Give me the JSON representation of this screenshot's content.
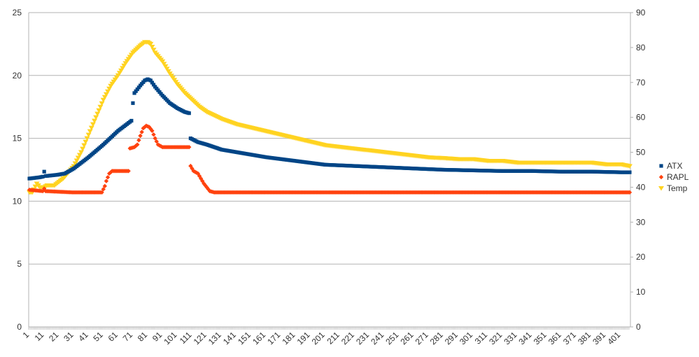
{
  "chart_data": {
    "type": "scatter",
    "title": "",
    "xlabel": "",
    "ylabel": "",
    "ylabel_right": "",
    "x_range": [
      1,
      407
    ],
    "x_tick_start": 1,
    "x_tick_step": 10,
    "ylim_left": [
      0,
      25
    ],
    "yticks_left": [
      0,
      5,
      10,
      15,
      20,
      25
    ],
    "ylim_right": [
      0,
      90
    ],
    "yticks_right": [
      0,
      10,
      20,
      30,
      40,
      50,
      60,
      70,
      80,
      90
    ],
    "grid": true,
    "legend_position": "right",
    "series": [
      {
        "name": "ATX",
        "axis": "left",
        "color": "#004586",
        "marker": "square",
        "points": [
          [
            1,
            11.8
          ],
          [
            8,
            11.9
          ],
          [
            10,
            11.95
          ],
          [
            11,
            12.35
          ],
          [
            12,
            12.0
          ],
          [
            20,
            12.1
          ],
          [
            25,
            12.2
          ],
          [
            31,
            12.6
          ],
          [
            41,
            13.5
          ],
          [
            51,
            14.5
          ],
          [
            61,
            15.6
          ],
          [
            70,
            16.4
          ],
          [
            71,
            17.8
          ],
          [
            72,
            18.6
          ],
          [
            76,
            19.2
          ],
          [
            79,
            19.6
          ],
          [
            81,
            19.7
          ],
          [
            83,
            19.6
          ],
          [
            86,
            19.1
          ],
          [
            91,
            18.4
          ],
          [
            96,
            17.8
          ],
          [
            101,
            17.4
          ],
          [
            106,
            17.1
          ],
          [
            109,
            17.0
          ],
          [
            110,
            15.0
          ],
          [
            115,
            14.7
          ],
          [
            121,
            14.5
          ],
          [
            131,
            14.1
          ],
          [
            141,
            13.9
          ],
          [
            151,
            13.7
          ],
          [
            161,
            13.5
          ],
          [
            171,
            13.35
          ],
          [
            181,
            13.2
          ],
          [
            191,
            13.05
          ],
          [
            201,
            12.9
          ],
          [
            221,
            12.8
          ],
          [
            241,
            12.7
          ],
          [
            261,
            12.6
          ],
          [
            281,
            12.5
          ],
          [
            301,
            12.45
          ],
          [
            321,
            12.4
          ],
          [
            341,
            12.4
          ],
          [
            361,
            12.35
          ],
          [
            381,
            12.35
          ],
          [
            401,
            12.3
          ],
          [
            407,
            12.3
          ]
        ]
      },
      {
        "name": "RAPL",
        "axis": "left",
        "color": "#ff420e",
        "marker": "diamond",
        "points": [
          [
            1,
            10.9
          ],
          [
            10,
            10.8
          ],
          [
            11,
            11.0
          ],
          [
            12,
            10.8
          ],
          [
            30,
            10.7
          ],
          [
            50,
            10.7
          ],
          [
            52,
            11.2
          ],
          [
            53,
            11.6
          ],
          [
            55,
            12.2
          ],
          [
            57,
            12.4
          ],
          [
            68,
            12.4
          ],
          [
            69,
            14.2
          ],
          [
            72,
            14.3
          ],
          [
            74,
            14.5
          ],
          [
            76,
            15.2
          ],
          [
            78,
            15.8
          ],
          [
            80,
            16.0
          ],
          [
            82,
            15.9
          ],
          [
            84,
            15.6
          ],
          [
            86,
            15.0
          ],
          [
            88,
            14.5
          ],
          [
            91,
            14.3
          ],
          [
            109,
            14.3
          ],
          [
            110,
            12.8
          ],
          [
            112,
            12.4
          ],
          [
            115,
            12.2
          ],
          [
            117,
            11.8
          ],
          [
            119,
            11.4
          ],
          [
            121,
            11.1
          ],
          [
            123,
            10.8
          ],
          [
            126,
            10.7
          ],
          [
            200,
            10.7
          ],
          [
            300,
            10.7
          ],
          [
            407,
            10.7
          ]
        ]
      },
      {
        "name": "Temp",
        "axis": "right",
        "color": "#ffd320",
        "marker": "triangle-down",
        "points": [
          [
            1,
            38.5
          ],
          [
            3,
            38.5
          ],
          [
            6,
            41
          ],
          [
            8,
            40
          ],
          [
            11,
            40
          ],
          [
            13,
            40.5
          ],
          [
            18,
            40.5
          ],
          [
            21,
            41.5
          ],
          [
            24,
            42.5
          ],
          [
            27,
            44
          ],
          [
            31,
            46
          ],
          [
            36,
            50
          ],
          [
            41,
            55
          ],
          [
            46,
            60
          ],
          [
            51,
            65
          ],
          [
            56,
            69
          ],
          [
            61,
            72
          ],
          [
            66,
            75.5
          ],
          [
            71,
            78.5
          ],
          [
            76,
            80.5
          ],
          [
            79,
            81.5
          ],
          [
            81,
            81.5
          ],
          [
            83,
            81
          ],
          [
            86,
            78.5
          ],
          [
            91,
            76
          ],
          [
            96,
            72.5
          ],
          [
            101,
            69.5
          ],
          [
            106,
            67
          ],
          [
            111,
            65
          ],
          [
            116,
            63
          ],
          [
            121,
            61.5
          ],
          [
            131,
            59.5
          ],
          [
            141,
            58
          ],
          [
            151,
            57
          ],
          [
            161,
            56
          ],
          [
            171,
            55
          ],
          [
            181,
            54
          ],
          [
            191,
            53
          ],
          [
            201,
            52
          ],
          [
            211,
            51.5
          ],
          [
            221,
            51
          ],
          [
            231,
            50.5
          ],
          [
            241,
            50
          ],
          [
            251,
            49.5
          ],
          [
            261,
            49
          ],
          [
            271,
            48.5
          ],
          [
            281,
            48.3
          ],
          [
            291,
            48
          ],
          [
            301,
            48
          ],
          [
            311,
            47.5
          ],
          [
            321,
            47.5
          ],
          [
            331,
            47
          ],
          [
            341,
            47
          ],
          [
            351,
            47
          ],
          [
            361,
            47
          ],
          [
            371,
            47
          ],
          [
            381,
            47
          ],
          [
            391,
            46.5
          ],
          [
            401,
            46.5
          ],
          [
            407,
            46
          ]
        ]
      }
    ]
  }
}
